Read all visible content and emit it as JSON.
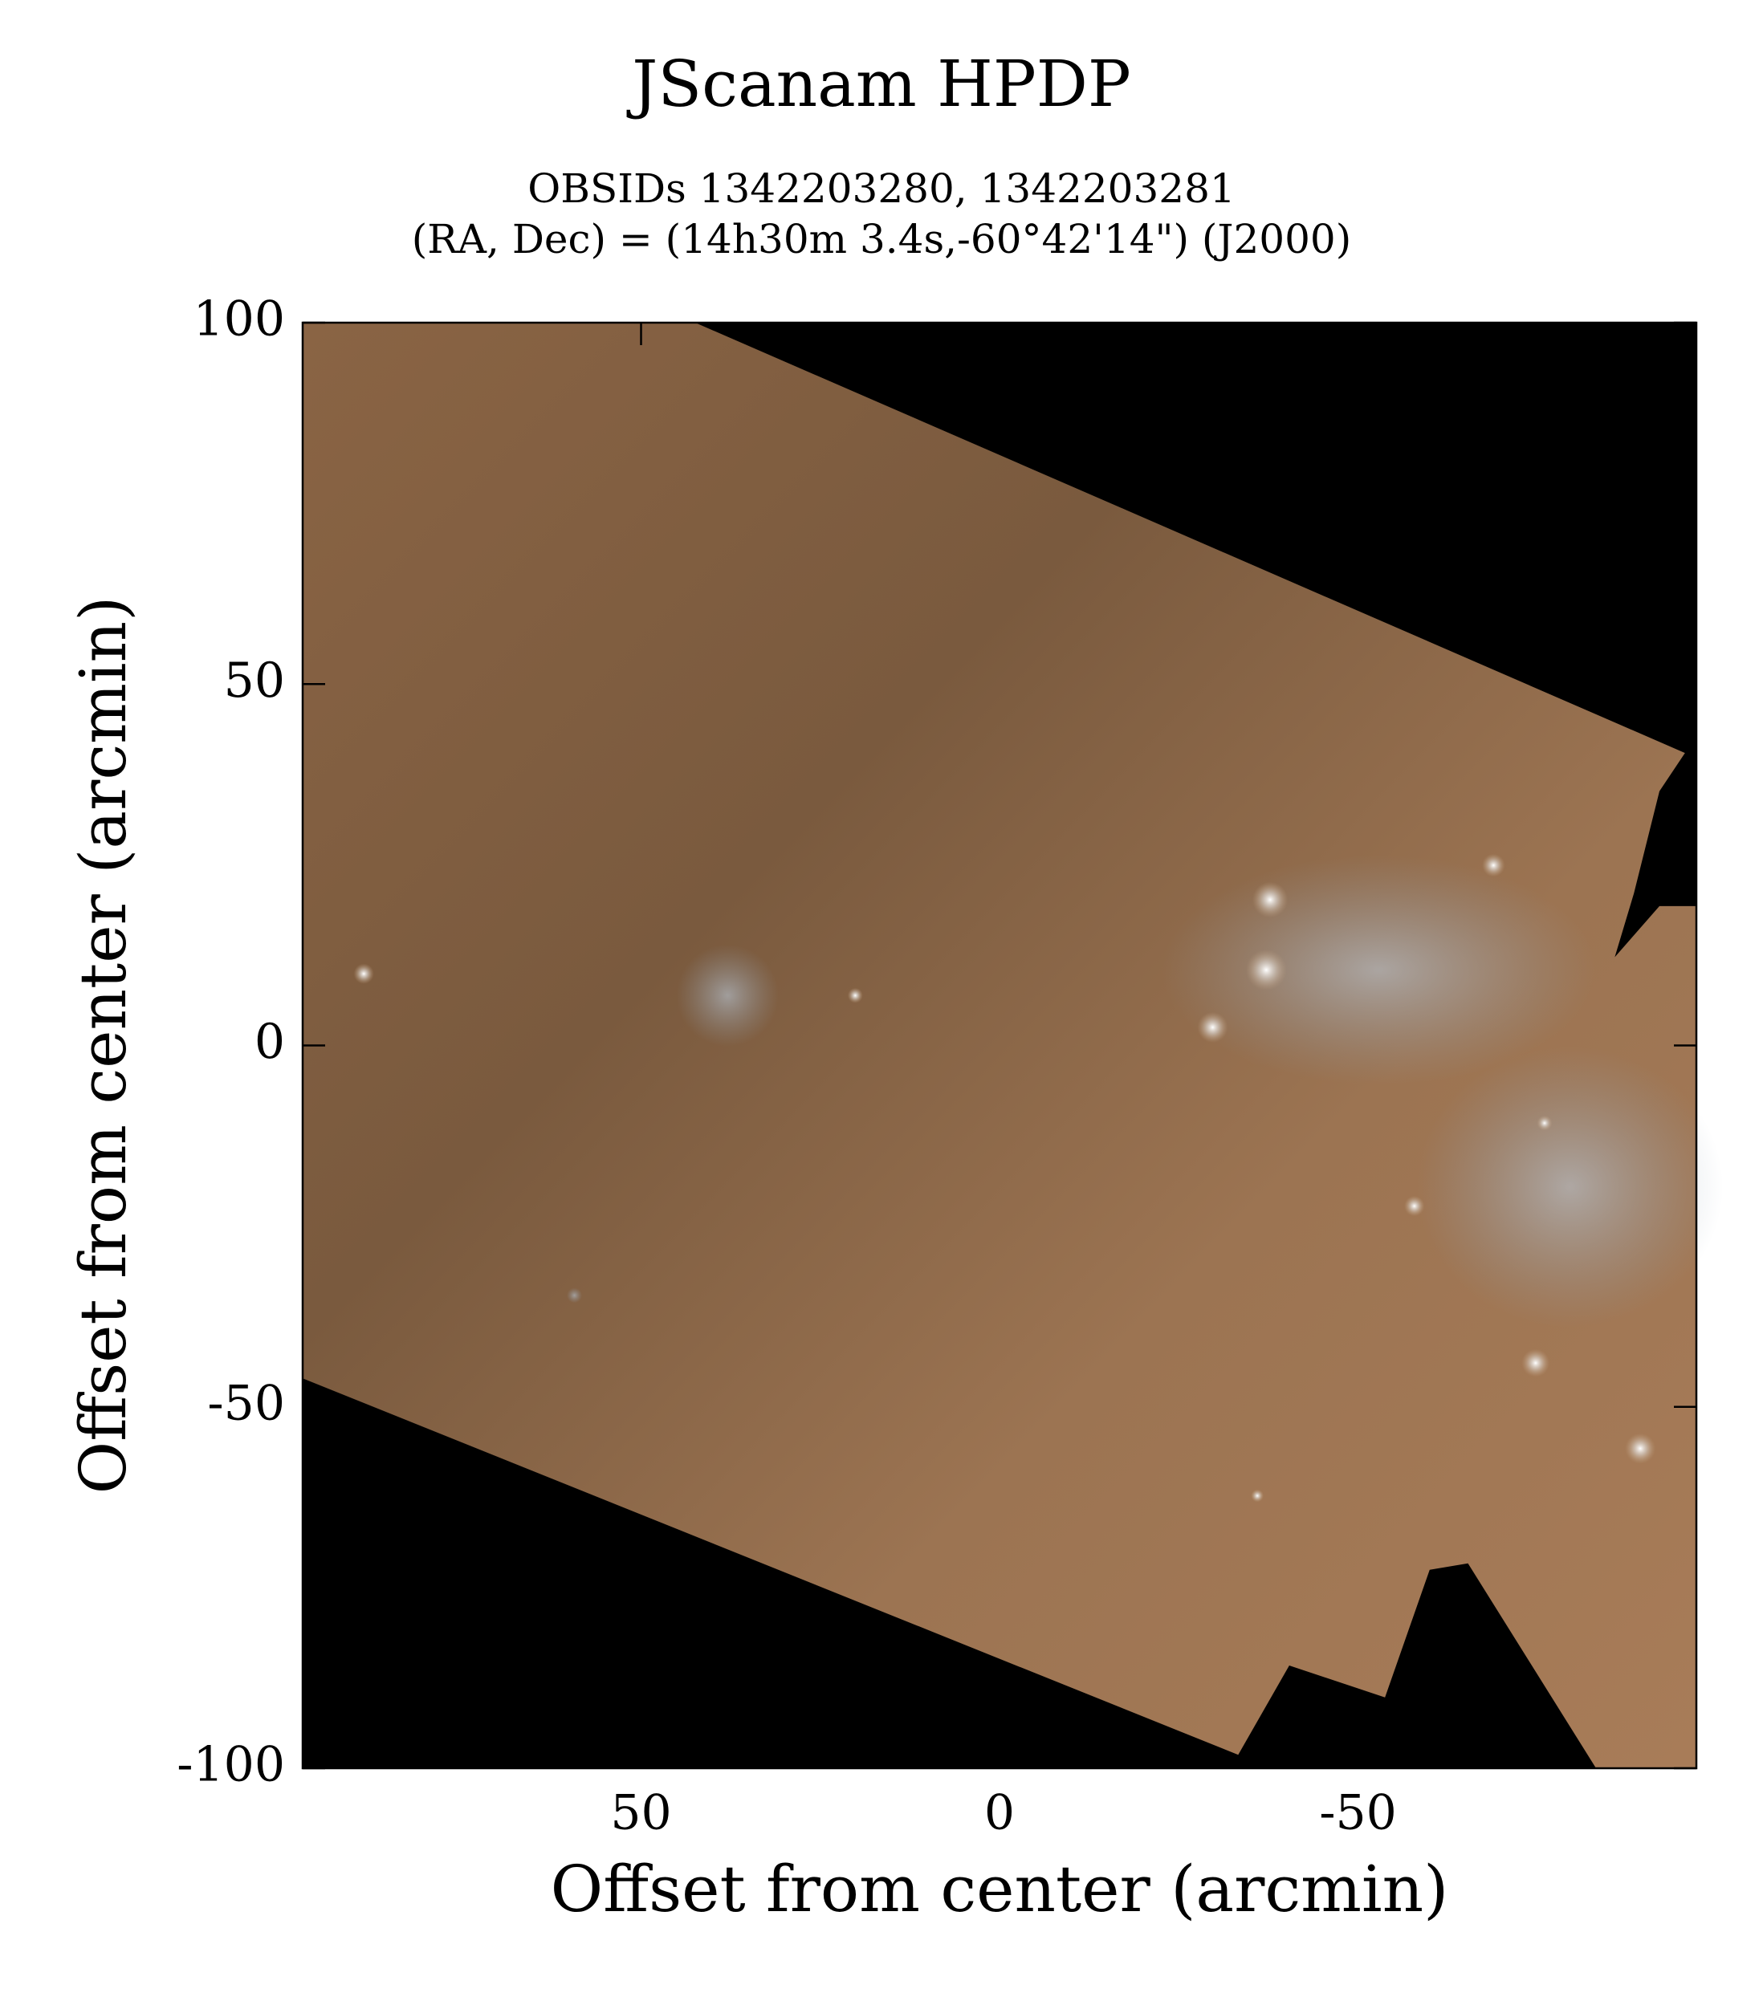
{
  "chart_data": {
    "type": "image",
    "title": "JScanam HPDP",
    "subtitle": [
      "OBSIDs 1342203280, 1342203281",
      "(RA, Dec) = (14h30m 3.4s,-60°42'14\") (J2000)"
    ],
    "xlabel": "Offset from center (arcmin)",
    "ylabel": "Offset from center (arcmin)",
    "xlim": [
      97.2,
      -97.2
    ],
    "xticks": [
      50,
      0,
      -50
    ],
    "ylim": [
      -100,
      100
    ],
    "yticks": [
      -100,
      -50,
      0,
      50,
      100
    ]
  }
}
